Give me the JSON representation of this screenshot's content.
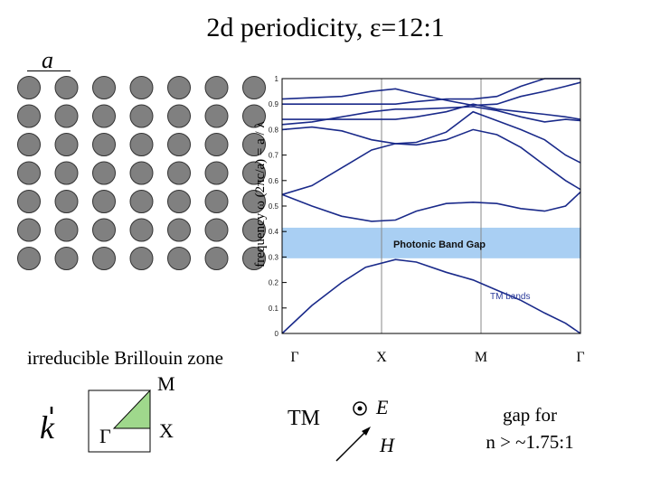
{
  "title": "2d periodicity, ε=12:1",
  "lattice": {
    "constant_label": "a",
    "rows": 7,
    "cols": 7,
    "rod_color": "#808080"
  },
  "chart_data": {
    "type": "line",
    "title": "",
    "ylabel": "frequency ω (2πc/a) = a / λ",
    "ylim": [
      0,
      1
    ],
    "yticks": [
      "0",
      "0.1",
      "0.2",
      "0.3",
      "0.4",
      "0.5",
      "0.6",
      "0.7",
      "0.8",
      "0.9",
      "1"
    ],
    "x_points": [
      "Γ",
      "X",
      "M",
      "Γ"
    ],
    "band_color": "#1a2a8a",
    "series_name": "TM bands",
    "band_gap": {
      "label": "Photonic Band Gap",
      "lower": 0.295,
      "upper": 0.415,
      "color": "#a9cff3"
    },
    "bands": [
      {
        "name": "band-1",
        "values": [
          [
            0,
            0
          ],
          [
            0.1,
            0.11
          ],
          [
            0.2,
            0.2
          ],
          [
            0.28,
            0.26
          ],
          [
            0.38,
            0.29
          ],
          [
            0.45,
            0.28
          ],
          [
            0.55,
            0.24
          ],
          [
            0.64,
            0.21
          ],
          [
            0.72,
            0.17
          ],
          [
            0.8,
            0.13
          ],
          [
            0.88,
            0.08
          ],
          [
            0.95,
            0.04
          ],
          [
            1,
            0
          ]
        ]
      },
      {
        "name": "band-2",
        "values": [
          [
            0,
            0.545
          ],
          [
            0.1,
            0.5
          ],
          [
            0.2,
            0.46
          ],
          [
            0.3,
            0.44
          ],
          [
            0.38,
            0.445
          ],
          [
            0.45,
            0.48
          ],
          [
            0.55,
            0.51
          ],
          [
            0.64,
            0.515
          ],
          [
            0.72,
            0.51
          ],
          [
            0.8,
            0.49
          ],
          [
            0.88,
            0.48
          ],
          [
            0.95,
            0.5
          ],
          [
            1,
            0.555
          ]
        ]
      },
      {
        "name": "band-3",
        "values": [
          [
            0,
            0.545
          ],
          [
            0.1,
            0.58
          ],
          [
            0.2,
            0.65
          ],
          [
            0.3,
            0.72
          ],
          [
            0.38,
            0.745
          ],
          [
            0.45,
            0.74
          ],
          [
            0.55,
            0.76
          ],
          [
            0.64,
            0.8
          ],
          [
            0.72,
            0.78
          ],
          [
            0.8,
            0.73
          ],
          [
            0.88,
            0.66
          ],
          [
            0.95,
            0.6
          ],
          [
            1,
            0.565
          ]
        ]
      },
      {
        "name": "band-4",
        "values": [
          [
            0,
            0.8
          ],
          [
            0.1,
            0.81
          ],
          [
            0.2,
            0.795
          ],
          [
            0.3,
            0.76
          ],
          [
            0.38,
            0.745
          ],
          [
            0.45,
            0.75
          ],
          [
            0.55,
            0.79
          ],
          [
            0.64,
            0.87
          ],
          [
            0.72,
            0.835
          ],
          [
            0.8,
            0.8
          ],
          [
            0.88,
            0.76
          ],
          [
            0.95,
            0.7
          ],
          [
            1,
            0.67
          ]
        ]
      },
      {
        "name": "band-5",
        "values": [
          [
            0,
            0.82
          ],
          [
            0.1,
            0.83
          ],
          [
            0.2,
            0.85
          ],
          [
            0.3,
            0.87
          ],
          [
            0.38,
            0.88
          ],
          [
            0.45,
            0.88
          ],
          [
            0.55,
            0.885
          ],
          [
            0.64,
            0.89
          ],
          [
            0.72,
            0.875
          ],
          [
            0.8,
            0.85
          ],
          [
            0.88,
            0.83
          ],
          [
            0.95,
            0.84
          ],
          [
            1,
            0.835
          ]
        ]
      },
      {
        "name": "band-6",
        "values": [
          [
            0,
            0.84
          ],
          [
            0.1,
            0.84
          ],
          [
            0.2,
            0.84
          ],
          [
            0.3,
            0.84
          ],
          [
            0.38,
            0.84
          ],
          [
            0.45,
            0.85
          ],
          [
            0.55,
            0.87
          ],
          [
            0.64,
            0.9
          ],
          [
            0.72,
            0.88
          ],
          [
            0.8,
            0.87
          ],
          [
            0.88,
            0.86
          ],
          [
            0.95,
            0.85
          ],
          [
            1,
            0.84
          ]
        ]
      },
      {
        "name": "band-7",
        "values": [
          [
            0,
            0.92
          ],
          [
            0.1,
            0.925
          ],
          [
            0.2,
            0.93
          ],
          [
            0.3,
            0.95
          ],
          [
            0.38,
            0.96
          ],
          [
            0.45,
            0.94
          ],
          [
            0.55,
            0.915
          ],
          [
            0.64,
            0.895
          ],
          [
            0.72,
            0.9
          ],
          [
            0.8,
            0.93
          ],
          [
            0.88,
            0.95
          ],
          [
            0.95,
            0.97
          ],
          [
            1,
            0.985
          ]
        ]
      },
      {
        "name": "band-8",
        "values": [
          [
            0,
            0.9
          ],
          [
            0.1,
            0.9
          ],
          [
            0.2,
            0.9
          ],
          [
            0.3,
            0.9
          ],
          [
            0.38,
            0.9
          ],
          [
            0.45,
            0.91
          ],
          [
            0.55,
            0.92
          ],
          [
            0.64,
            0.92
          ],
          [
            0.72,
            0.93
          ],
          [
            0.8,
            0.97
          ],
          [
            0.88,
            1.0
          ],
          [
            0.95,
            1.0
          ],
          [
            1,
            1.0
          ]
        ]
      }
    ]
  },
  "brillouin": {
    "label": "irreducible Brillouin zone",
    "m": "M",
    "gamma": "Γ",
    "x": "X",
    "k": "k",
    "triangle_color": "#9fd88c"
  },
  "polarization": {
    "tm": "TM",
    "e": "E",
    "h": "H"
  },
  "gap_note": {
    "line1": "gap for",
    "line2": "n > ~1.75:1"
  }
}
